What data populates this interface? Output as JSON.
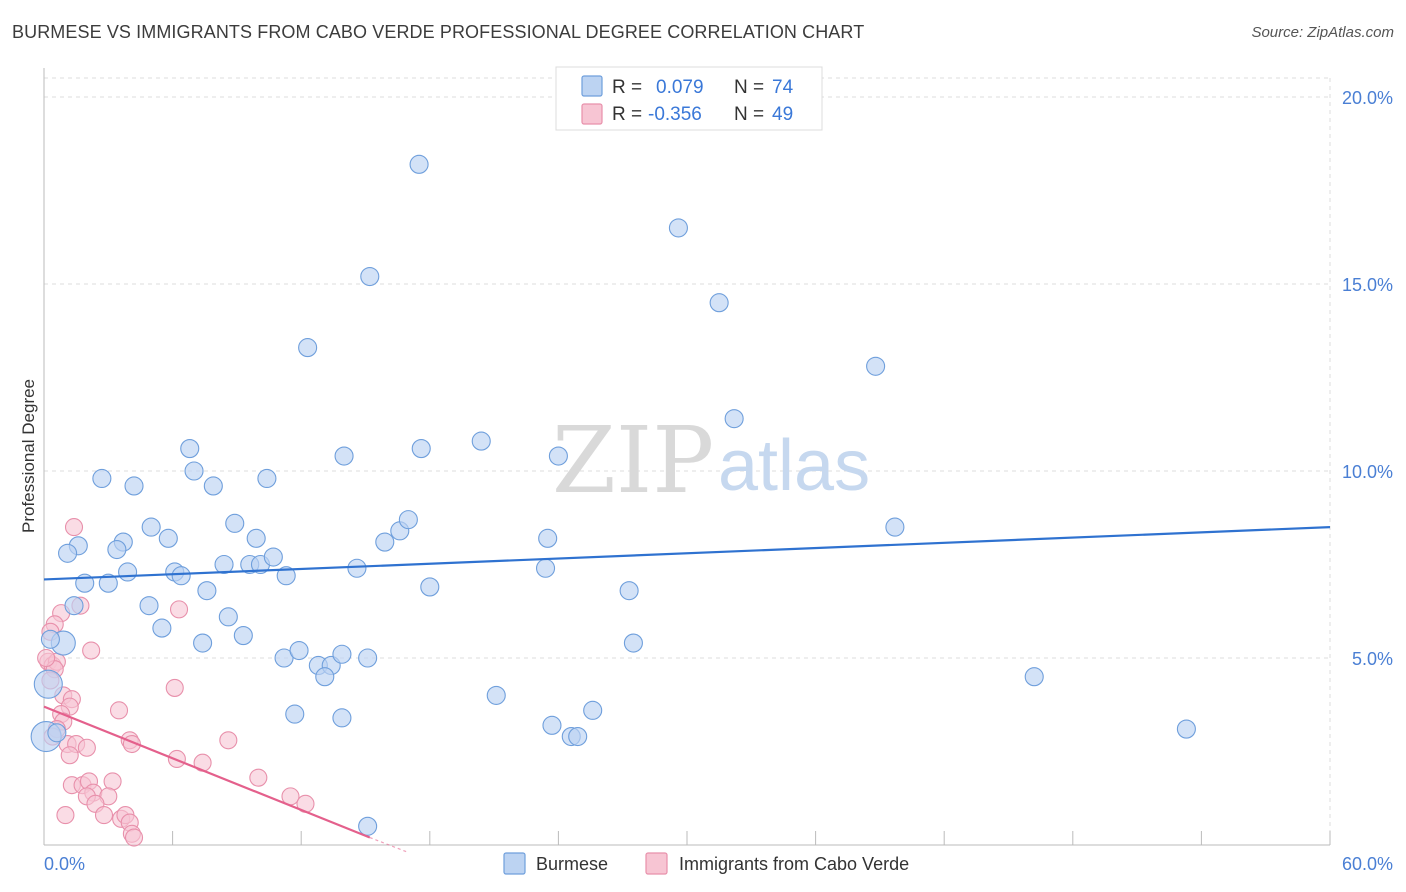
{
  "header": {
    "title": "BURMESE VS IMMIGRANTS FROM CABO VERDE PROFESSIONAL DEGREE CORRELATION CHART",
    "source": "Source: ZipAtlas.com"
  },
  "watermark": {
    "zip": "ZIP",
    "atlas": "atlas"
  },
  "colors": {
    "blue_fill": "#bcd3f2",
    "blue_stroke": "#6f9fdc",
    "blue_line": "#2f72d0",
    "pink_fill": "#f7c5d3",
    "pink_stroke": "#e890ab",
    "pink_line": "#e4608c",
    "grid": "#dedede",
    "tick_text": "#4a7fd4"
  },
  "chart_data": {
    "type": "scatter",
    "xlabel": "",
    "ylabel": "Professional Degree",
    "xlim": [
      0,
      60
    ],
    "ylim": [
      0,
      20
    ],
    "x_tick_labels": [
      "0.0%",
      "60.0%"
    ],
    "y_ticks": [
      5,
      10,
      15,
      20
    ],
    "y_tick_labels": [
      "5.0%",
      "10.0%",
      "15.0%",
      "20.0%"
    ],
    "grid": true,
    "legend_position": "top-center",
    "legend": [
      {
        "r_label": "R =",
        "r_value": "0.079",
        "n_label": "N =",
        "n_value": "74"
      },
      {
        "r_label": "R =",
        "r_value": "-0.356",
        "n_label": "N =",
        "n_value": "49"
      }
    ],
    "series": [
      {
        "name": "Burmese",
        "color": "#6f9fdc",
        "trend": {
          "x": [
            0,
            60
          ],
          "y": [
            7.1,
            8.5
          ]
        },
        "points": [
          [
            17.5,
            18.2
          ],
          [
            29.6,
            16.5
          ],
          [
            15.2,
            15.2
          ],
          [
            31.5,
            14.5
          ],
          [
            12.3,
            13.3
          ],
          [
            38.8,
            12.8
          ],
          [
            32.2,
            11.4
          ],
          [
            6.8,
            10.6
          ],
          [
            14.0,
            10.4
          ],
          [
            17.6,
            10.6
          ],
          [
            20.4,
            10.8
          ],
          [
            24.0,
            10.4
          ],
          [
            2.7,
            9.8
          ],
          [
            4.2,
            9.6
          ],
          [
            7.0,
            10.0
          ],
          [
            7.9,
            9.6
          ],
          [
            10.4,
            9.8
          ],
          [
            1.6,
            8.0
          ],
          [
            3.7,
            8.1
          ],
          [
            5.0,
            8.5
          ],
          [
            5.8,
            8.2
          ],
          [
            8.9,
            8.6
          ],
          [
            9.9,
            8.2
          ],
          [
            15.9,
            8.1
          ],
          [
            16.6,
            8.4
          ],
          [
            17.0,
            8.7
          ],
          [
            23.5,
            8.2
          ],
          [
            39.7,
            8.5
          ],
          [
            1.1,
            7.8
          ],
          [
            3.4,
            7.9
          ],
          [
            3.9,
            7.3
          ],
          [
            6.1,
            7.3
          ],
          [
            6.4,
            7.2
          ],
          [
            8.4,
            7.5
          ],
          [
            9.6,
            7.5
          ],
          [
            10.1,
            7.5
          ],
          [
            10.7,
            7.7
          ],
          [
            11.3,
            7.2
          ],
          [
            14.6,
            7.4
          ],
          [
            23.4,
            7.4
          ],
          [
            1.9,
            7.0
          ],
          [
            3.0,
            7.0
          ],
          [
            7.6,
            6.8
          ],
          [
            18.0,
            6.9
          ],
          [
            27.3,
            6.8
          ],
          [
            1.4,
            6.4
          ],
          [
            4.9,
            6.4
          ],
          [
            8.6,
            6.1
          ],
          [
            5.5,
            5.8
          ],
          [
            9.3,
            5.6
          ],
          [
            0.9,
            5.4
          ],
          [
            7.4,
            5.4
          ],
          [
            27.5,
            5.4
          ],
          [
            11.2,
            5.0
          ],
          [
            11.9,
            5.2
          ],
          [
            12.8,
            4.8
          ],
          [
            13.4,
            4.8
          ],
          [
            13.1,
            4.5
          ],
          [
            13.9,
            5.1
          ],
          [
            15.1,
            5.0
          ],
          [
            0.2,
            4.3
          ],
          [
            21.1,
            4.0
          ],
          [
            46.2,
            4.5
          ],
          [
            11.7,
            3.5
          ],
          [
            13.9,
            3.4
          ],
          [
            23.7,
            3.2
          ],
          [
            24.6,
            2.9
          ],
          [
            24.9,
            2.9
          ],
          [
            25.6,
            3.6
          ],
          [
            53.3,
            3.1
          ],
          [
            0.1,
            2.9
          ],
          [
            0.6,
            3.0
          ],
          [
            0.3,
            5.5
          ],
          [
            15.1,
            0.5
          ]
        ]
      },
      {
        "name": "Immigrants from Cabo Verde",
        "color": "#e890ab",
        "trend": {
          "x": [
            0,
            15.2
          ],
          "y": [
            3.7,
            0.2
          ]
        },
        "points": [
          [
            1.4,
            8.5
          ],
          [
            0.8,
            6.2
          ],
          [
            1.7,
            6.4
          ],
          [
            6.3,
            6.3
          ],
          [
            0.5,
            5.9
          ],
          [
            0.3,
            5.7
          ],
          [
            2.2,
            5.2
          ],
          [
            0.2,
            4.9
          ],
          [
            0.4,
            4.8
          ],
          [
            0.6,
            4.9
          ],
          [
            0.5,
            4.7
          ],
          [
            6.1,
            4.2
          ],
          [
            0.3,
            4.4
          ],
          [
            0.9,
            4.0
          ],
          [
            1.3,
            3.9
          ],
          [
            1.2,
            3.7
          ],
          [
            3.5,
            3.6
          ],
          [
            0.8,
            3.5
          ],
          [
            0.9,
            3.3
          ],
          [
            0.6,
            3.1
          ],
          [
            0.4,
            2.9
          ],
          [
            1.1,
            2.7
          ],
          [
            1.5,
            2.7
          ],
          [
            2.0,
            2.6
          ],
          [
            4.0,
            2.8
          ],
          [
            4.1,
            2.7
          ],
          [
            8.6,
            2.8
          ],
          [
            1.2,
            2.4
          ],
          [
            6.2,
            2.3
          ],
          [
            7.4,
            2.2
          ],
          [
            10.0,
            1.8
          ],
          [
            1.3,
            1.6
          ],
          [
            1.8,
            1.6
          ],
          [
            2.1,
            1.7
          ],
          [
            3.2,
            1.7
          ],
          [
            2.3,
            1.4
          ],
          [
            2.0,
            1.3
          ],
          [
            3.0,
            1.3
          ],
          [
            2.4,
            1.1
          ],
          [
            11.5,
            1.3
          ],
          [
            12.2,
            1.1
          ],
          [
            1.0,
            0.8
          ],
          [
            2.8,
            0.8
          ],
          [
            3.6,
            0.7
          ],
          [
            3.8,
            0.8
          ],
          [
            4.0,
            0.6
          ],
          [
            4.1,
            0.3
          ],
          [
            4.2,
            0.2
          ],
          [
            0.1,
            5.0
          ]
        ]
      }
    ]
  }
}
